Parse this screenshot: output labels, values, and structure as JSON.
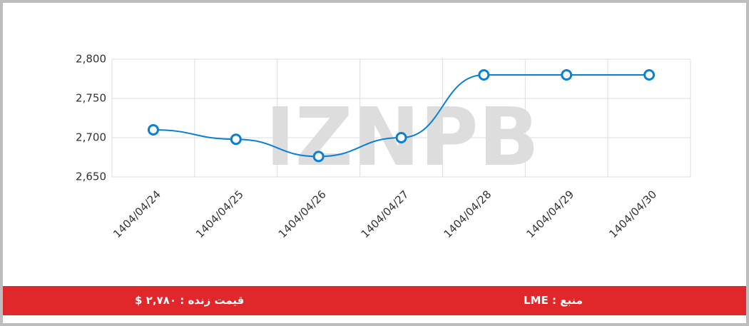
{
  "chart_data": {
    "type": "line",
    "categories": [
      "1404/04/24",
      "1404/04/25",
      "1404/04/26",
      "1404/04/27",
      "1404/04/28",
      "1404/04/29",
      "1404/04/30"
    ],
    "values": [
      2710,
      2698,
      2676,
      2700,
      2780,
      2780,
      2780
    ],
    "color": "#0b7fd4",
    "ylim": [
      2650,
      2800
    ],
    "yticks": [
      {
        "value": 2650,
        "label": "2,650"
      },
      {
        "value": 2700,
        "label": "2,700"
      },
      {
        "value": 2750,
        "label": "2,750"
      },
      {
        "value": 2800,
        "label": "2,800"
      }
    ],
    "grid": true,
    "watermark": "IZNPB"
  },
  "footer": {
    "price": "قیمت زنده : ۲,۷۸۰ $",
    "source": "منبع : LME"
  }
}
